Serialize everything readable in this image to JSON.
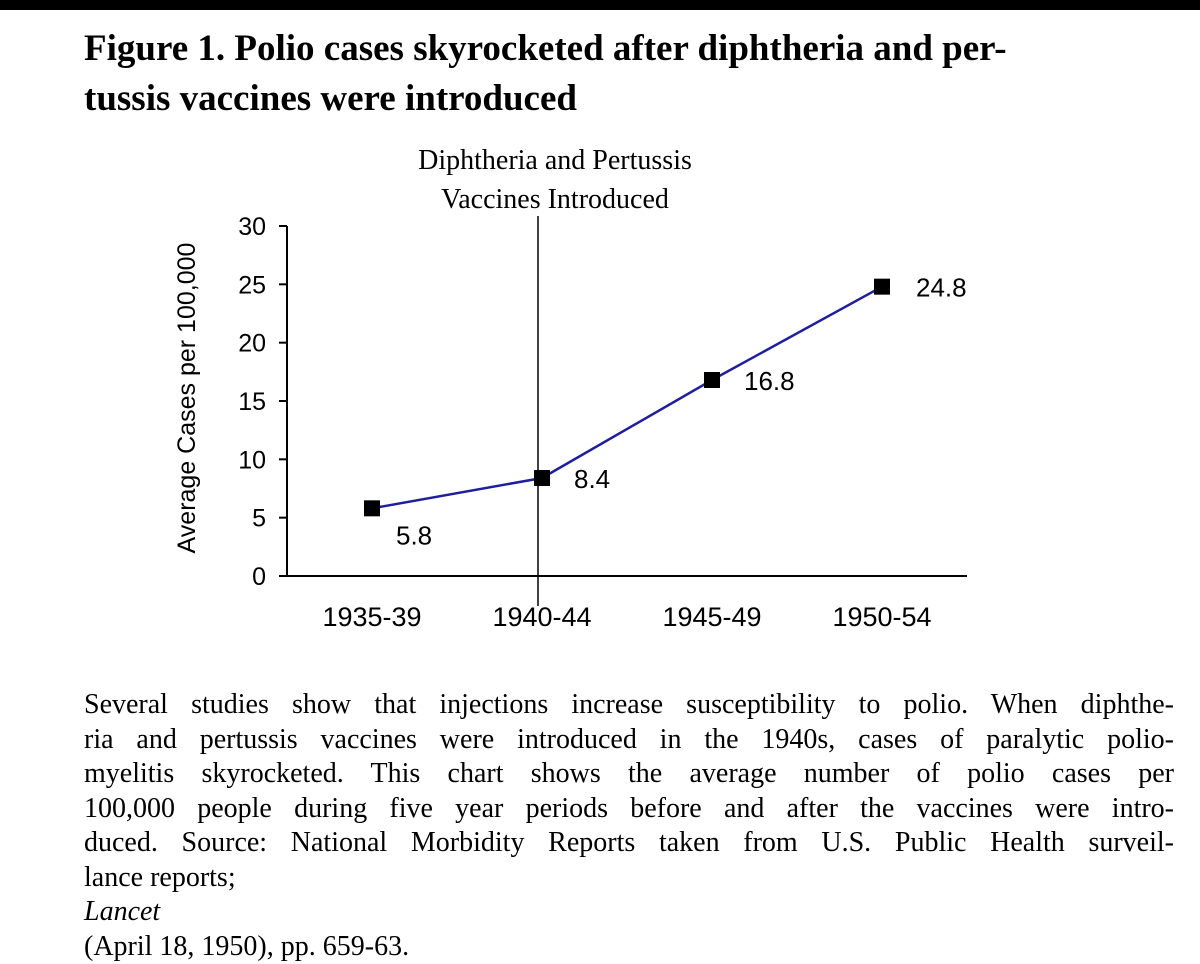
{
  "figure": {
    "title_lines": [
      "Figure 1. Polio cases skyrocketed after diphtheria and per-",
      "tussis vaccines were introduced"
    ]
  },
  "chart_data": {
    "type": "line",
    "categories": [
      "1935-39",
      "1940-44",
      "1945-49",
      "1950-54"
    ],
    "series": [
      {
        "values": [
          5.8,
          8.4,
          16.8,
          24.8
        ]
      }
    ],
    "data_labels": [
      "5.8",
      "8.4",
      "16.8",
      "24.8"
    ],
    "ylabel": "Average Cases per 100,000",
    "ylim": [
      0,
      30
    ],
    "yticks": [
      0,
      5,
      10,
      15,
      20,
      25,
      30
    ],
    "annotation": {
      "lines": [
        "Diphtheria and Pertussis",
        "Vaccines Introduced"
      ],
      "at_category": "1940-44"
    },
    "grid": false,
    "line_color": "#1f1f9e",
    "marker_color": "#000000"
  },
  "caption": {
    "lines": [
      "Several studies show that injections increase susceptibility to polio. When diphthe-",
      "ria and pertussis vaccines were introduced in the 1940s, cases of paralytic polio-",
      "myelitis skyrocketed. This chart shows the average number of polio cases per",
      "100,000 people during five year periods before and after the vaccines were intro-",
      "duced. Source: National Morbidity Reports taken from U.S. Public Health surveil-"
    ],
    "last_line_before": "lance reports; ",
    "last_line_italic": "Lancet",
    "last_line_after": " (April 18, 1950), pp. 659-63."
  }
}
